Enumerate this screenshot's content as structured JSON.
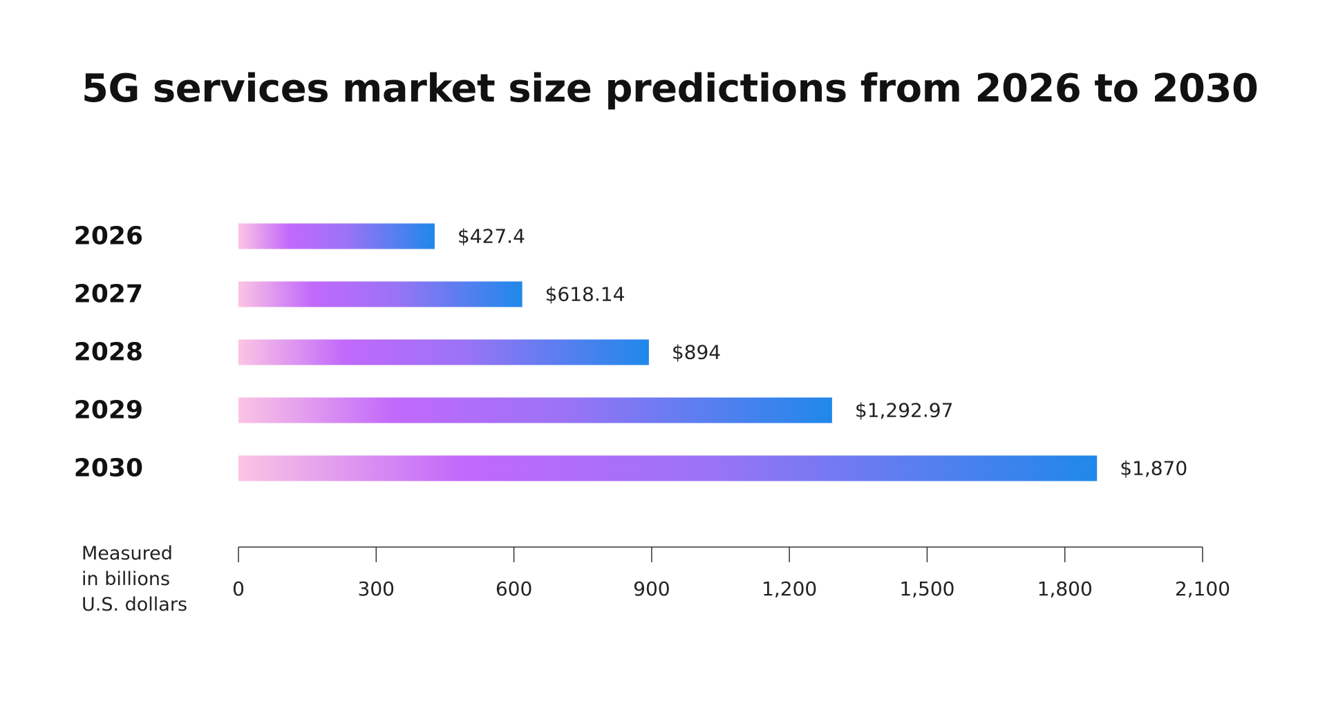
{
  "chart_data": {
    "type": "bar",
    "orientation": "horizontal",
    "title": "5G services market size predictions from 2026 to 2030",
    "categories": [
      "2026",
      "2027",
      "2028",
      "2029",
      "2030"
    ],
    "values": [
      427.4,
      618.14,
      894,
      1292.97,
      1870
    ],
    "value_labels": [
      "$427.4",
      "$618.14",
      "$894",
      "$1,292.97",
      "$1,870"
    ],
    "xlim": [
      0,
      2100
    ],
    "xticks": [
      0,
      300,
      600,
      900,
      1200,
      1500,
      1800,
      2100
    ],
    "xtick_labels": [
      "0",
      "300",
      "600",
      "900",
      "1,200",
      "1,500",
      "1,800",
      "2,100"
    ],
    "axis_note": [
      "Measured",
      "in billions",
      "U.S. dollars"
    ],
    "grid": false,
    "bar_gradient": [
      "#fbc4e4",
      "#c169fb",
      "#9b73f5",
      "#1f88ea"
    ],
    "axis_color": "#333333"
  }
}
